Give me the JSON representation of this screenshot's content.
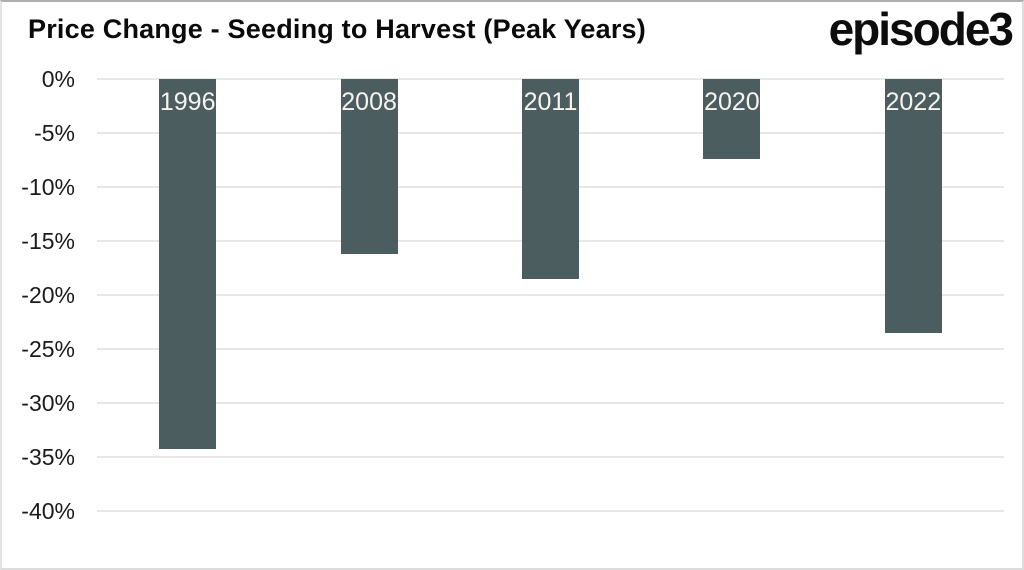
{
  "header": {
    "title": "Price Change - Seeding to Harvest (Peak Years)",
    "logo": "episode3"
  },
  "chart_data": {
    "type": "bar",
    "title": "Price Change - Seeding to Harvest (Peak Years)",
    "categories": [
      "1996",
      "2008",
      "2011",
      "2020",
      "2022"
    ],
    "values": [
      -34.3,
      -16.2,
      -18.5,
      -7.4,
      -23.5
    ],
    "unit": "%",
    "xlabel": "",
    "ylabel": "",
    "ylim": [
      0,
      -40
    ],
    "ytick_values": [
      0,
      -5,
      -10,
      -15,
      -20,
      -25,
      -30,
      -35,
      -40
    ],
    "ytick_labels": [
      "0%",
      "-5%",
      "-10%",
      "-15%",
      "-20%",
      "-25%",
      "-30%",
      "-35%",
      "-40%"
    ],
    "grid": true,
    "legend": false,
    "bar_labels_position": "inside-top",
    "colors": {
      "bar": "#4c5d60",
      "bar_label": "#f6f3ee",
      "gridline": "#e7e7e7",
      "tick_text": "#1b1b1b",
      "title_text": "#0a0a0a",
      "background": "#ffffff"
    }
  }
}
